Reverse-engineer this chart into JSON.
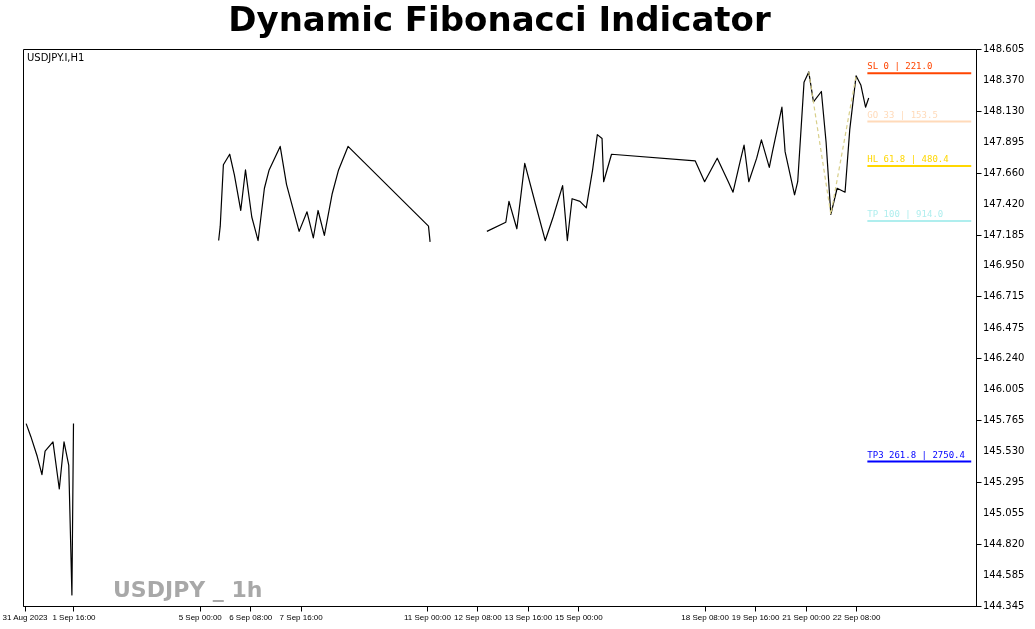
{
  "chart_data": {
    "type": "line",
    "title": "Dynamic Fibonacci Indicator",
    "subtitle": "USDJPY.I,H1",
    "annotations": [
      "USDJPY _ 1h"
    ],
    "xlim": [
      "2023-08-31T08:00",
      "2023-09-25T12:00"
    ],
    "xticks": [
      {
        "value": "2023-08-31T09:00",
        "label": "31 Aug 2023"
      },
      {
        "value": "2023-09-01T16:00",
        "label": "1 Sep 16:00"
      },
      {
        "value": "2023-09-05T00:00",
        "label": "5 Sep 00:00"
      },
      {
        "value": "2023-09-06T08:00",
        "label": "6 Sep 08:00"
      },
      {
        "value": "2023-09-07T16:00",
        "label": "7 Sep 16:00"
      },
      {
        "value": "2023-09-11T00:00",
        "label": "11 Sep 00:00"
      },
      {
        "value": "2023-09-12T08:00",
        "label": "12 Sep 08:00"
      },
      {
        "value": "2023-09-13T16:00",
        "label": "13 Sep 16:00"
      },
      {
        "value": "2023-09-15T00:00",
        "label": "15 Sep 00:00"
      },
      {
        "value": "2023-09-18T08:00",
        "label": "18 Sep 08:00"
      },
      {
        "value": "2023-09-19T16:00",
        "label": "19 Sep 16:00"
      },
      {
        "value": "2023-09-21T00:00",
        "label": "21 Sep 00:00"
      },
      {
        "value": "2023-09-22T08:00",
        "label": "22 Sep 08:00"
      }
    ],
    "ylim": [
      144.345,
      148.605
    ],
    "yticks": [
      144.345,
      144.585,
      {
        "value": 144.82,
        "label": "144.820"
      },
      145.055,
      145.295,
      {
        "value": 145.53,
        "label": "145.530"
      },
      145.765,
      146.005,
      {
        "value": 146.24,
        "label": "146.240"
      },
      146.475,
      146.715,
      {
        "value": 146.95,
        "label": "146.950"
      },
      147.185,
      {
        "value": 147.42,
        "label": "147.420"
      },
      {
        "value": 147.66,
        "label": "147.660"
      },
      147.895,
      {
        "value": 148.13,
        "label": "148.130"
      },
      {
        "value": 148.37,
        "label": "148.370"
      },
      148.605
    ],
    "grid": false,
    "series": [
      {
        "color": "#000000",
        "x": [
          "2023-08-31T10:00",
          "2023-08-31T13:00",
          "2023-08-31T17:00",
          "2023-08-31T20:00",
          "2023-08-31T22:00",
          "2023-09-01T03:00",
          "2023-09-01T07:00",
          "2023-09-01T10:00",
          "2023-09-01T13:00",
          "2023-09-01T15:00",
          "2023-09-01T16:00",
          "2023-09-01T17:00",
          "2023-09-05T12:00",
          "2023-09-05T13:00",
          "2023-09-05T15:00",
          "2023-09-05T19:00",
          "2023-09-05T22:00",
          "2023-09-06T02:00",
          "2023-09-06T05:00",
          "2023-09-06T09:00",
          "2023-09-06T13:00",
          "2023-09-06T17:00",
          "2023-09-06T20:00",
          "2023-09-07T03:00",
          "2023-09-07T07:00",
          "2023-09-07T11:00",
          "2023-09-07T15:00",
          "2023-09-07T20:00",
          "2023-09-08T00:00",
          "2023-09-08T03:00",
          "2023-09-08T07:00",
          "2023-09-08T12:00",
          "2023-09-08T16:00",
          "2023-09-08T22:00",
          "2023-09-11T01:00",
          "2023-09-11T02:00",
          "2023-09-11T03:00",
          "2023-09-12T14:00",
          "2023-09-13T02:00",
          "2023-09-13T04:00",
          "2023-09-13T09:00",
          "2023-09-13T14:00",
          "2023-09-13T21:00",
          "2023-09-14T03:00",
          "2023-09-14T08:00",
          "2023-09-14T14:00",
          "2023-09-14T17:00",
          "2023-09-14T20:00",
          "2023-09-15T01:00",
          "2023-09-15T05:00",
          "2023-09-15T09:00",
          "2023-09-15T12:00",
          "2023-09-15T15:00",
          "2023-09-15T16:00",
          "2023-09-15T21:00",
          "2023-09-18T02:00",
          "2023-09-18T08:00",
          "2023-09-18T16:00",
          "2023-09-18T23:00",
          "2023-09-19T02:00",
          "2023-09-19T07:00",
          "2023-09-19T09:00",
          "2023-09-19T12:00",
          "2023-09-19T17:00",
          "2023-09-19T20:00",
          "2023-09-20T01:00",
          "2023-09-20T03:00",
          "2023-09-20T09:00",
          "2023-09-20T11:00",
          "2023-09-20T17:00",
          "2023-09-20T19:00",
          "2023-09-20T23:00",
          "2023-09-21T02:00",
          "2023-09-21T05:00",
          "2023-09-21T10:00",
          "2023-09-21T13:00",
          "2023-09-21T16:00",
          "2023-09-21T20:00",
          "2023-09-22T01:00",
          "2023-09-22T04:00",
          "2023-09-22T08:00",
          "2023-09-22T11:00",
          "2023-09-22T14:00",
          "2023-09-22T16:00"
        ],
        "values": [
          145.74,
          145.64,
          145.49,
          145.35,
          145.53,
          145.6,
          145.24,
          145.6,
          145.42,
          144.43,
          145.74,
          null,
          147.14,
          147.25,
          147.72,
          147.8,
          147.64,
          147.37,
          147.68,
          147.32,
          147.14,
          147.54,
          147.68,
          147.86,
          147.57,
          147.39,
          147.21,
          147.36,
          147.16,
          147.37,
          147.18,
          147.5,
          147.68,
          147.86,
          147.25,
          147.13,
          null,
          147.21,
          147.28,
          147.44,
          147.23,
          147.73,
          147.41,
          147.14,
          147.32,
          147.56,
          147.14,
          147.46,
          147.44,
          147.39,
          147.68,
          147.95,
          147.92,
          147.59,
          147.8,
          147.75,
          147.59,
          147.77,
          147.59,
          147.51,
          147.77,
          147.87,
          147.59,
          147.77,
          147.91,
          147.7,
          147.82,
          148.16,
          147.82,
          147.49,
          147.59,
          148.35,
          148.43,
          148.2,
          148.28,
          147.89,
          147.34,
          147.54,
          147.51,
          147.99,
          148.4,
          148.33,
          148.16,
          148.23
        ]
      },
      {
        "color": "#d8cf8a",
        "line_style": "dashed",
        "x": [
          "2023-09-21T02:00",
          "2023-09-21T16:00",
          "2023-09-22T08:00"
        ],
        "values": [
          148.43,
          147.34,
          148.4
        ]
      }
    ],
    "ref_lines": [
      {
        "axis": "y",
        "value": 148.42,
        "label": "SL  0     | 221.0",
        "color": "#ff4500"
      },
      {
        "axis": "y",
        "value": 148.05,
        "label": "GO  33    | 153.5",
        "color": "#ffdab9"
      },
      {
        "axis": "y",
        "value": 147.71,
        "label": "HL  61.8  | 480.4",
        "color": "#ffd700"
      },
      {
        "axis": "y",
        "value": 147.29,
        "label": "TP  100   | 914.0",
        "color": "#afeeee"
      },
      {
        "axis": "y",
        "value": 145.45,
        "label": "TP3 261.8 | 2750.4",
        "color": "#0000ff"
      }
    ]
  }
}
